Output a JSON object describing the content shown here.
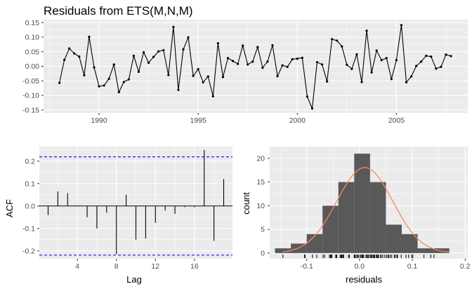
{
  "chart_data": [
    {
      "type": "line",
      "title": "Residuals from ETS(M,N,M)",
      "xlabel": "",
      "ylabel": "",
      "xlim": [
        1987.2,
        2008.6
      ],
      "ylim": [
        -0.16,
        0.16
      ],
      "x_ticks": [
        1990,
        1995,
        2000,
        2005
      ],
      "x_tick_labels": [
        "1990",
        "1995",
        "2000",
        "2005"
      ],
      "y_ticks": [
        -0.15,
        -0.1,
        -0.05,
        0.0,
        0.05,
        0.1,
        0.15
      ],
      "y_tick_labels": [
        "-0.15",
        "-0.10",
        "-0.05",
        "0.00",
        "0.05",
        "0.10",
        "0.15"
      ],
      "x_start": 1988.0,
      "x_step": 0.25,
      "y": [
        -0.057,
        0.022,
        0.061,
        0.044,
        0.033,
        -0.031,
        0.101,
        -0.004,
        -0.069,
        -0.066,
        -0.043,
        0.006,
        -0.089,
        -0.054,
        -0.045,
        0.036,
        -0.019,
        0.048,
        0.012,
        0.032,
        0.051,
        0.055,
        -0.03,
        0.135,
        -0.081,
        0.058,
        0.099,
        -0.033,
        -0.01,
        -0.055,
        -0.035,
        -0.103,
        0.079,
        -0.037,
        0.028,
        0.018,
        0.008,
        0.071,
        0.006,
        0.016,
        0.066,
        -0.005,
        0.016,
        0.072,
        -0.034,
        0.003,
        -0.002,
        0.024,
        0.026,
        0.029,
        -0.104,
        -0.145,
        0.014,
        0.006,
        -0.052,
        0.093,
        0.088,
        0.068,
        0.005,
        -0.009,
        0.041,
        -0.054,
        0.122,
        -0.021,
        0.054,
        0.021,
        0.028,
        -0.044,
        0.021,
        0.141,
        -0.055,
        -0.035,
        0.001,
        0.016,
        0.036,
        0.033,
        -0.008,
        -0.002,
        0.04,
        0.035
      ],
      "grid": true
    },
    {
      "type": "bar",
      "title": "",
      "xlabel": "Lag",
      "ylabel": "ACF",
      "xlim": [
        0.1,
        19.9
      ],
      "ylim": [
        -0.235,
        0.265
      ],
      "x_ticks": [
        4,
        8,
        12,
        16
      ],
      "x_tick_labels": [
        "4",
        "8",
        "12",
        "16"
      ],
      "y_ticks": [
        -0.2,
        -0.1,
        0.0,
        0.1,
        0.2
      ],
      "y_tick_labels": [
        "-0.2",
        "-0.1",
        "0.0",
        "0.1",
        "0.2"
      ],
      "lags": [
        1,
        2,
        3,
        4,
        5,
        6,
        7,
        8,
        9,
        10,
        11,
        12,
        13,
        14,
        15,
        16,
        17,
        18,
        19
      ],
      "values": [
        -0.04,
        0.065,
        0.057,
        0.003,
        -0.05,
        -0.1,
        -0.03,
        -0.215,
        0.05,
        -0.15,
        -0.145,
        -0.075,
        -0.02,
        -0.035,
        -0.005,
        -0.005,
        0.25,
        -0.155,
        0.12
      ],
      "confidence_limit": 0.219,
      "grid": true
    },
    {
      "type": "histogram",
      "title": "",
      "xlabel": "residuals",
      "ylabel": "count",
      "xlim": [
        -0.17,
        0.205
      ],
      "ylim": [
        -1.2,
        22.5
      ],
      "x_ticks": [
        -0.1,
        0.0,
        0.1,
        0.2
      ],
      "x_tick_labels": [
        "-0.1",
        "0.0",
        "0.1",
        "0.2"
      ],
      "y_ticks": [
        0,
        5,
        10,
        15,
        20
      ],
      "y_tick_labels": [
        "0",
        "5",
        "10",
        "15",
        "20"
      ],
      "bin_edges": [
        -0.16,
        -0.13,
        -0.1,
        -0.07,
        -0.04,
        -0.01,
        0.02,
        0.05,
        0.08,
        0.11,
        0.14,
        0.17
      ],
      "counts": [
        1,
        2,
        4,
        10,
        15,
        21,
        15,
        6,
        4,
        1,
        1
      ],
      "density_curve": {
        "mean": 0.01,
        "sd": 0.053,
        "n": 80,
        "binwidth": 0.03,
        "range": [
          -0.145,
          0.17
        ]
      },
      "rug": [
        -0.145,
        -0.104,
        -0.103,
        -0.089,
        -0.081,
        -0.069,
        -0.066,
        -0.057,
        -0.055,
        -0.055,
        -0.054,
        -0.054,
        -0.052,
        -0.045,
        -0.044,
        -0.043,
        -0.037,
        -0.035,
        -0.035,
        -0.034,
        -0.033,
        -0.031,
        -0.03,
        -0.021,
        -0.019,
        -0.01,
        -0.009,
        -0.008,
        -0.005,
        -0.004,
        -0.002,
        0.001,
        0.003,
        0.005,
        0.006,
        0.006,
        0.008,
        0.012,
        0.014,
        0.016,
        0.016,
        0.018,
        0.021,
        0.021,
        0.022,
        0.024,
        0.026,
        0.028,
        0.028,
        0.029,
        0.032,
        0.033,
        0.033,
        0.035,
        0.036,
        0.036,
        0.04,
        0.041,
        0.044,
        0.048,
        0.051,
        0.054,
        0.055,
        0.058,
        0.061,
        0.066,
        0.068,
        0.071,
        0.072,
        0.079,
        0.088,
        0.093,
        0.099,
        0.101,
        0.122,
        0.135,
        0.141
      ],
      "grid": true
    }
  ],
  "colors": {
    "panel_background": "#ebebeb",
    "grid_major": "#ffffff",
    "data_line": "#000000",
    "confidence_line": "#0000ff",
    "histogram_fill": "#595959",
    "density_line": "#f48a63"
  }
}
